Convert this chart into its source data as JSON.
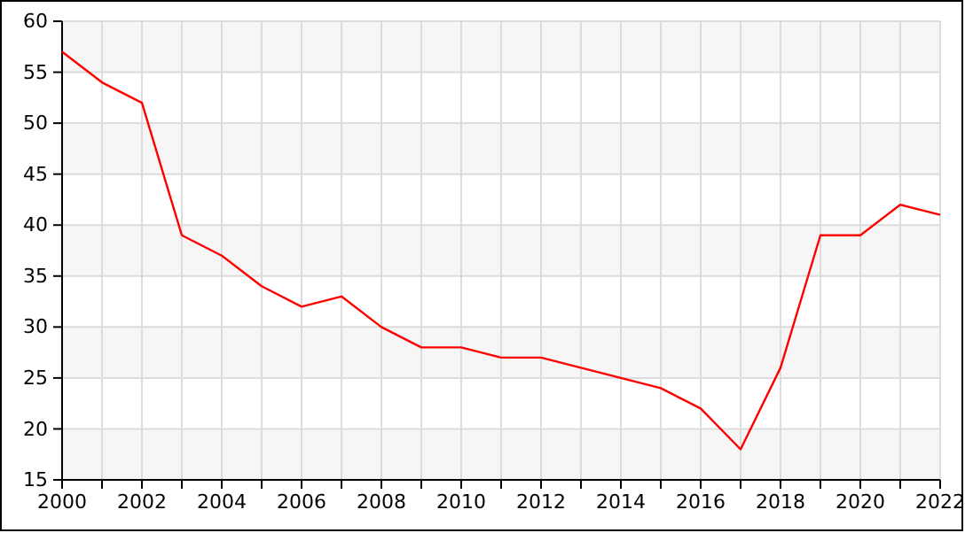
{
  "chart_data": {
    "type": "line",
    "x": [
      2000,
      2001,
      2002,
      2003,
      2004,
      2005,
      2006,
      2007,
      2008,
      2009,
      2010,
      2011,
      2012,
      2013,
      2014,
      2015,
      2016,
      2017,
      2018,
      2019,
      2020,
      2021,
      2022
    ],
    "series": [
      {
        "color": "#ff0000",
        "values": [
          57,
          54,
          52,
          39,
          37,
          34,
          32,
          33,
          30,
          28,
          28,
          27,
          27,
          26,
          25,
          24,
          22,
          18,
          26,
          39,
          39,
          42,
          41
        ]
      }
    ],
    "xlim": [
      2000,
      2022
    ],
    "xticks": [
      2000,
      {
        "value": 2001,
        "label": null
      },
      2002,
      {
        "value": 2003,
        "label": null
      },
      2004,
      {
        "value": 2005,
        "label": null
      },
      2006,
      {
        "value": 2007,
        "label": null
      },
      2008,
      {
        "value": 2009,
        "label": null
      },
      2010,
      {
        "value": 2011,
        "label": null
      },
      2012,
      {
        "value": 2013,
        "label": null
      },
      2014,
      {
        "value": 2015,
        "label": null
      },
      2016,
      {
        "value": 2017,
        "label": null
      },
      2018,
      {
        "value": 2019,
        "label": null
      },
      2020,
      {
        "value": 2021,
        "label": null
      },
      2022
    ],
    "ylim": [
      15,
      60
    ],
    "yticks": [
      15,
      20,
      25,
      30,
      35,
      40,
      45,
      50,
      55,
      60
    ],
    "grid": true,
    "marker": "none",
    "line_style": "solid"
  }
}
